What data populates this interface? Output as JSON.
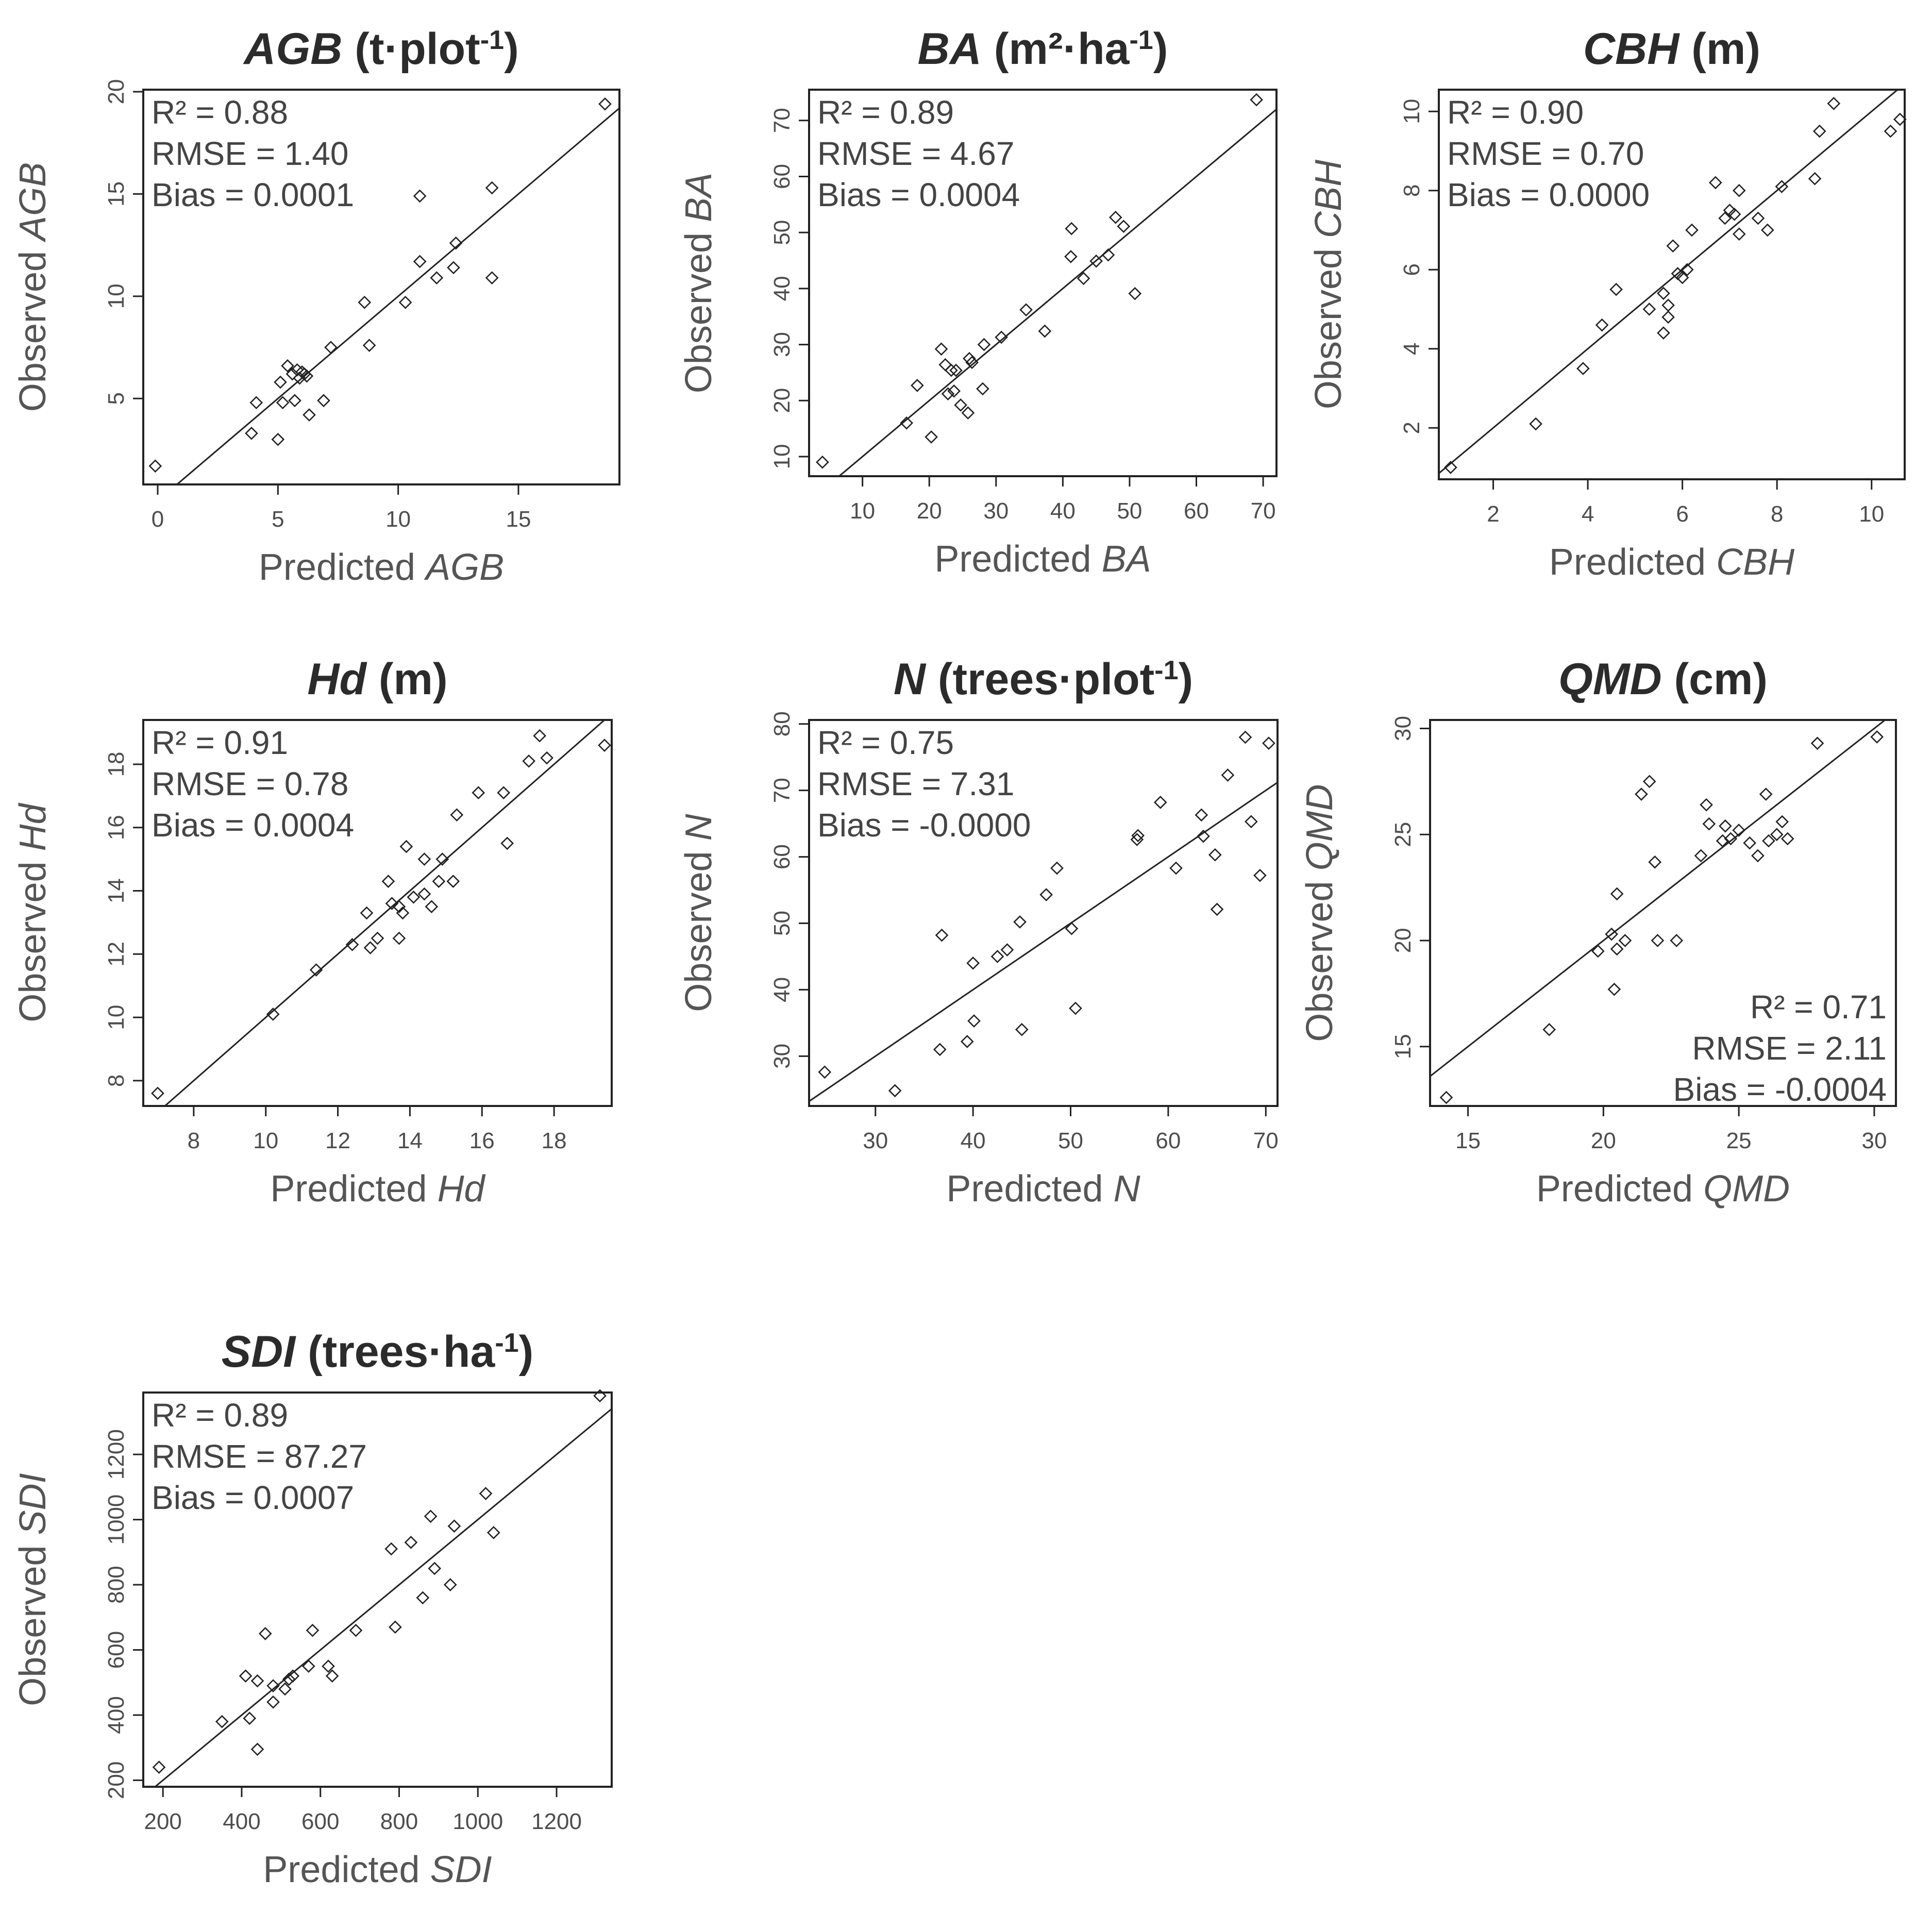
{
  "chart_data": [
    {
      "type": "scatter",
      "title": {
        "var": "AGB",
        "unit_pre": " (t·plot",
        "sup": "-1",
        "unit_post": ")"
      },
      "xlabel": {
        "pre": "Predicted ",
        "var": "AGB"
      },
      "ylabel": {
        "pre": "Observed ",
        "var": "AGB"
      },
      "xlim": [
        -0.6,
        19.2
      ],
      "ylim": [
        0.8,
        20.1
      ],
      "xticks": [
        0,
        5,
        10,
        15
      ],
      "yticks": [
        5,
        10,
        15,
        20
      ],
      "stats": {
        "r2": "R² = 0.88",
        "rmse": "RMSE = 1.40",
        "bias": "Bias = 0.0001"
      },
      "stats_position": "top-left",
      "fit": {
        "slope": 1.0,
        "intercept": 0.0
      },
      "points": [
        [
          -0.1,
          1.7
        ],
        [
          3.9,
          3.3
        ],
        [
          4.1,
          4.8
        ],
        [
          5.0,
          3.0
        ],
        [
          5.2,
          4.8
        ],
        [
          5.1,
          5.8
        ],
        [
          5.4,
          6.6
        ],
        [
          5.6,
          6.2
        ],
        [
          5.7,
          4.9
        ],
        [
          5.8,
          6.4
        ],
        [
          5.9,
          6.0
        ],
        [
          6.0,
          6.3
        ],
        [
          6.1,
          6.2
        ],
        [
          6.2,
          6.1
        ],
        [
          6.3,
          4.2
        ],
        [
          6.9,
          4.9
        ],
        [
          7.2,
          7.5
        ],
        [
          8.6,
          9.7
        ],
        [
          8.8,
          7.6
        ],
        [
          10.3,
          9.7
        ],
        [
          10.9,
          11.7
        ],
        [
          10.9,
          14.9
        ],
        [
          11.6,
          10.9
        ],
        [
          12.3,
          11.4
        ],
        [
          12.4,
          12.6
        ],
        [
          13.9,
          10.9
        ],
        [
          13.9,
          15.3
        ],
        [
          18.6,
          19.4
        ]
      ]
    },
    {
      "type": "scatter",
      "title": {
        "var": "BA",
        "unit_pre": " (m²·ha",
        "sup": "-1",
        "unit_post": ")"
      },
      "xlabel": {
        "pre": "Predicted ",
        "var": "BA"
      },
      "ylabel": {
        "pre": "Observed ",
        "var": "BA"
      },
      "xlim": [
        2,
        72
      ],
      "ylim": [
        6.5,
        75.5
      ],
      "xticks": [
        10,
        20,
        30,
        40,
        50,
        60,
        70
      ],
      "yticks": [
        10,
        20,
        30,
        40,
        50,
        60,
        70
      ],
      "stats": {
        "r2": "R² = 0.89",
        "rmse": "RMSE = 4.67",
        "bias": "Bias = 0.0004"
      },
      "stats_position": "top-left",
      "fit": {
        "slope": 1.0,
        "intercept": 0.0
      },
      "points": [
        [
          4.0,
          9.0
        ],
        [
          16.6,
          16.0
        ],
        [
          18.2,
          22.7
        ],
        [
          20.3,
          13.5
        ],
        [
          21.8,
          29.2
        ],
        [
          22.4,
          26.4
        ],
        [
          22.8,
          21.2
        ],
        [
          23.3,
          25.4
        ],
        [
          23.7,
          21.7
        ],
        [
          24.0,
          25.4
        ],
        [
          24.7,
          19.2
        ],
        [
          25.8,
          17.8
        ],
        [
          26.0,
          27.5
        ],
        [
          26.4,
          26.8
        ],
        [
          28.0,
          22.1
        ],
        [
          28.2,
          30.0
        ],
        [
          30.8,
          31.3
        ],
        [
          34.5,
          36.2
        ],
        [
          37.3,
          32.4
        ],
        [
          41.3,
          50.7
        ],
        [
          41.2,
          45.7
        ],
        [
          43.1,
          41.8
        ],
        [
          45.0,
          44.9
        ],
        [
          46.8,
          46.0
        ],
        [
          47.9,
          52.7
        ],
        [
          49.1,
          51.1
        ],
        [
          50.8,
          39.1
        ],
        [
          69.0,
          73.7
        ]
      ]
    },
    {
      "type": "scatter",
      "title": {
        "var": "CBH",
        "unit_pre": " (m)",
        "sup": "",
        "unit_post": ""
      },
      "xlabel": {
        "pre": "Predicted ",
        "var": "CBH"
      },
      "ylabel": {
        "pre": "Observed ",
        "var": "CBH"
      },
      "xlim": [
        0.85,
        10.7
      ],
      "ylim": [
        0.7,
        10.55
      ],
      "xticks": [
        2,
        4,
        6,
        8,
        10
      ],
      "yticks": [
        2,
        4,
        6,
        8,
        10
      ],
      "stats": {
        "r2": "R² = 0.90",
        "rmse": "RMSE = 0.70",
        "bias": "Bias = 0.0000"
      },
      "stats_position": "top-left",
      "fit": {
        "slope": 1.0,
        "intercept": 0.0
      },
      "points": [
        [
          1.1,
          1.0
        ],
        [
          2.9,
          2.1
        ],
        [
          3.9,
          3.5
        ],
        [
          4.3,
          4.6
        ],
        [
          4.6,
          5.5
        ],
        [
          5.3,
          5.0
        ],
        [
          5.6,
          4.4
        ],
        [
          5.6,
          5.4
        ],
        [
          5.7,
          5.1
        ],
        [
          5.7,
          4.8
        ],
        [
          5.8,
          6.6
        ],
        [
          5.9,
          5.9
        ],
        [
          6.0,
          5.8
        ],
        [
          6.1,
          6.0
        ],
        [
          6.2,
          7.0
        ],
        [
          6.7,
          8.2
        ],
        [
          6.9,
          7.3
        ],
        [
          7.0,
          7.5
        ],
        [
          7.1,
          7.4
        ],
        [
          7.2,
          6.9
        ],
        [
          7.2,
          8.0
        ],
        [
          7.6,
          7.3
        ],
        [
          7.8,
          7.0
        ],
        [
          8.1,
          8.1
        ],
        [
          8.8,
          8.3
        ],
        [
          8.9,
          9.5
        ],
        [
          9.2,
          10.2
        ],
        [
          10.4,
          9.5
        ],
        [
          10.6,
          9.8
        ]
      ]
    },
    {
      "type": "scatter",
      "title": {
        "var": "Hd",
        "unit_pre": " (m)",
        "sup": "",
        "unit_post": ""
      },
      "xlabel": {
        "pre": "Predicted ",
        "var": "Hd"
      },
      "ylabel": {
        "pre": "Observed ",
        "var": "Hd"
      },
      "xlim": [
        6.6,
        19.6
      ],
      "ylim": [
        7.2,
        19.4
      ],
      "xticks": [
        8,
        10,
        12,
        14,
        16,
        18
      ],
      "yticks": [
        8,
        10,
        12,
        14,
        16,
        18
      ],
      "stats": {
        "r2": "R² = 0.91",
        "rmse": "RMSE = 0.78",
        "bias": "Bias = 0.0004"
      },
      "stats_position": "top-left",
      "fit": {
        "slope": 1.0,
        "intercept": 0.0
      },
      "points": [
        [
          7.0,
          7.6
        ],
        [
          10.2,
          10.1
        ],
        [
          11.4,
          11.5
        ],
        [
          12.4,
          12.3
        ],
        [
          12.8,
          13.3
        ],
        [
          12.9,
          12.2
        ],
        [
          13.1,
          12.5
        ],
        [
          13.4,
          14.3
        ],
        [
          13.5,
          13.6
        ],
        [
          13.7,
          12.5
        ],
        [
          13.7,
          13.5
        ],
        [
          13.8,
          13.3
        ],
        [
          13.9,
          15.4
        ],
        [
          14.1,
          13.8
        ],
        [
          14.4,
          15.0
        ],
        [
          14.4,
          13.9
        ],
        [
          14.6,
          13.5
        ],
        [
          14.8,
          14.3
        ],
        [
          14.9,
          15.0
        ],
        [
          15.2,
          14.3
        ],
        [
          15.3,
          16.4
        ],
        [
          15.9,
          17.1
        ],
        [
          16.6,
          17.1
        ],
        [
          16.7,
          15.5
        ],
        [
          17.3,
          18.1
        ],
        [
          17.6,
          18.9
        ],
        [
          17.8,
          18.2
        ],
        [
          19.4,
          18.6
        ]
      ]
    },
    {
      "type": "scatter",
      "title": {
        "var": "N",
        "unit_pre": " (trees·plot",
        "sup": "-1",
        "unit_post": ")"
      },
      "xlabel": {
        "pre": "Predicted ",
        "var": "N"
      },
      "ylabel": {
        "pre": "Observed ",
        "var": "N"
      },
      "xlim": [
        23.2,
        71.2
      ],
      "ylim": [
        22.5,
        80.6
      ],
      "xticks": [
        30,
        40,
        50,
        60,
        70
      ],
      "yticks": [
        30,
        40,
        50,
        60,
        70,
        80
      ],
      "stats": {
        "r2": "R² = 0.75",
        "rmse": "RMSE = 7.31",
        "bias": "Bias = -0.0000"
      },
      "stats_position": "top-left",
      "fit": {
        "slope": 1.0,
        "intercept": 0.0
      },
      "points": [
        [
          24.8,
          27.6
        ],
        [
          32.0,
          24.8
        ],
        [
          36.6,
          31.0
        ],
        [
          36.8,
          48.2
        ],
        [
          39.4,
          32.2
        ],
        [
          40.0,
          44.0
        ],
        [
          40.1,
          35.3
        ],
        [
          42.5,
          45.0
        ],
        [
          43.5,
          46.0
        ],
        [
          44.8,
          50.2
        ],
        [
          45.0,
          34.0
        ],
        [
          47.5,
          54.3
        ],
        [
          48.6,
          58.3
        ],
        [
          50.1,
          49.2
        ],
        [
          50.5,
          37.2
        ],
        [
          56.8,
          62.6
        ],
        [
          56.9,
          63.2
        ],
        [
          59.2,
          68.2
        ],
        [
          60.8,
          58.3
        ],
        [
          63.4,
          66.3
        ],
        [
          63.6,
          63.1
        ],
        [
          64.8,
          60.3
        ],
        [
          65.0,
          52.1
        ],
        [
          66.1,
          72.3
        ],
        [
          67.9,
          78.0
        ],
        [
          68.5,
          65.3
        ],
        [
          69.4,
          57.2
        ],
        [
          70.3,
          77.1
        ]
      ]
    },
    {
      "type": "scatter",
      "title": {
        "var": "QMD",
        "unit_pre": " (cm)",
        "sup": "",
        "unit_post": ""
      },
      "xlabel": {
        "pre": "Predicted ",
        "var": "QMD"
      },
      "ylabel": {
        "pre": "Observed ",
        "var": "QMD"
      },
      "xlim": [
        13.6,
        30.8
      ],
      "ylim": [
        12.2,
        30.4
      ],
      "xticks": [
        15,
        20,
        25,
        30
      ],
      "yticks": [
        15,
        20,
        25,
        30
      ],
      "stats": {
        "r2": "R² = 0.71",
        "rmse": "RMSE = 2.11",
        "bias": "Bias = -0.0004"
      },
      "stats_position": "bottom-right",
      "fit": {
        "slope": 1.0,
        "intercept": 0.0
      },
      "points": [
        [
          14.2,
          12.6
        ],
        [
          18.0,
          15.8
        ],
        [
          19.8,
          19.5
        ],
        [
          20.3,
          20.3
        ],
        [
          20.4,
          17.7
        ],
        [
          20.5,
          19.6
        ],
        [
          20.5,
          22.2
        ],
        [
          20.8,
          20.0
        ],
        [
          21.4,
          26.9
        ],
        [
          21.7,
          27.5
        ],
        [
          21.9,
          23.7
        ],
        [
          22.0,
          20.0
        ],
        [
          22.7,
          20.0
        ],
        [
          23.6,
          24.0
        ],
        [
          23.8,
          26.4
        ],
        [
          23.9,
          25.5
        ],
        [
          24.4,
          24.7
        ],
        [
          24.5,
          25.4
        ],
        [
          24.7,
          24.8
        ],
        [
          25.0,
          25.2
        ],
        [
          25.4,
          24.6
        ],
        [
          25.7,
          24.0
        ],
        [
          26.0,
          26.9
        ],
        [
          26.1,
          24.7
        ],
        [
          26.4,
          25.0
        ],
        [
          26.6,
          25.6
        ],
        [
          26.8,
          24.8
        ],
        [
          27.9,
          29.3
        ],
        [
          30.1,
          29.6
        ]
      ]
    },
    {
      "type": "scatter",
      "title": {
        "var": "SDI",
        "unit_pre": " (trees·ha",
        "sup": "-1",
        "unit_post": ")"
      },
      "xlabel": {
        "pre": "Predicted ",
        "var": "SDI"
      },
      "ylabel": {
        "pre": "Observed ",
        "var": "SDI"
      },
      "xlim": [
        150,
        1340
      ],
      "ylim": [
        180,
        1390
      ],
      "xticks": [
        200,
        400,
        600,
        800,
        1000,
        1200
      ],
      "yticks": [
        200,
        400,
        600,
        800,
        1000,
        1200
      ],
      "stats": {
        "r2": "R² = 0.89",
        "rmse": "RMSE = 87.27",
        "bias": "Bias = 0.0007"
      },
      "stats_position": "top-left",
      "fit": {
        "slope": 1.0,
        "intercept": 0.0
      },
      "points": [
        [
          190,
          240
        ],
        [
          350,
          380
        ],
        [
          410,
          520
        ],
        [
          420,
          390
        ],
        [
          440,
          295
        ],
        [
          440,
          505
        ],
        [
          460,
          650
        ],
        [
          480,
          440
        ],
        [
          480,
          490
        ],
        [
          510,
          480
        ],
        [
          520,
          510
        ],
        [
          530,
          520
        ],
        [
          570,
          550
        ],
        [
          580,
          660
        ],
        [
          620,
          550
        ],
        [
          630,
          520
        ],
        [
          690,
          660
        ],
        [
          780,
          910
        ],
        [
          790,
          670
        ],
        [
          830,
          930
        ],
        [
          860,
          760
        ],
        [
          880,
          1010
        ],
        [
          890,
          850
        ],
        [
          930,
          800
        ],
        [
          940,
          980
        ],
        [
          1020,
          1080
        ],
        [
          1040,
          960
        ],
        [
          1310,
          1380
        ]
      ]
    }
  ]
}
